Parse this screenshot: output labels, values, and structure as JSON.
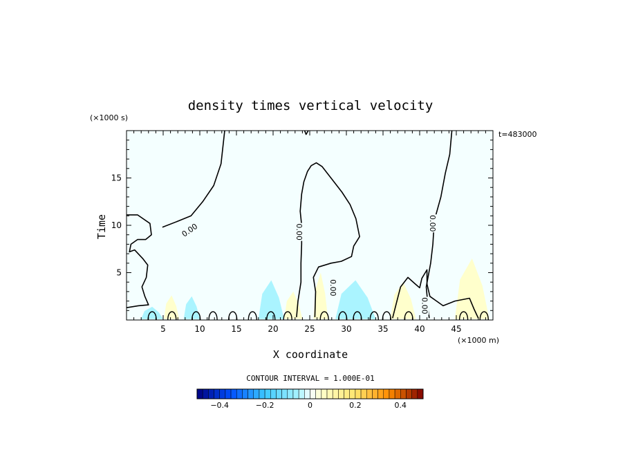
{
  "chart_data": {
    "type": "heatmap",
    "title": "density times vertical velocity",
    "xlabel": "X coordinate",
    "ylabel": "Time",
    "x_unit": "(×1000 m)",
    "y_unit": "(×1000 s)",
    "time_stamp": "t=483000",
    "xlim": [
      0,
      50
    ],
    "ylim": [
      0,
      20
    ],
    "x_ticks": [
      5,
      10,
      15,
      20,
      25,
      30,
      35,
      40,
      45
    ],
    "y_ticks": [
      5,
      10,
      15
    ],
    "contour_interval_text": "CONTOUR INTERVAL = 1.000E-01",
    "contour_level_label": "0.00",
    "colorbar": {
      "min": -0.5,
      "max": 0.5,
      "step": 0.025,
      "tick_values": [
        -0.4,
        -0.2,
        0,
        0.2,
        0.4
      ],
      "tick_labels": [
        "−0.4",
        "−0.2",
        "0",
        "0.2",
        "0.4"
      ],
      "colors": {
        "dark_negative": "#00007f",
        "mid_negative": "#1e90ff",
        "light_negative": "#aaf4ff",
        "near_zero": "#f4ffff",
        "light_positive": "#ffffcc",
        "mid_positive": "#ffa500",
        "dark_positive": "#7f0000"
      }
    },
    "field_patches": [
      {
        "sign": "positive",
        "x": [
          5.1,
          7.2
        ],
        "y": [
          0.1,
          2.6
        ],
        "value": 0.05
      },
      {
        "sign": "negative",
        "x": [
          2.0,
          5.0
        ],
        "y": [
          0.1,
          1.4
        ],
        "value": -0.05
      },
      {
        "sign": "negative",
        "x": [
          7.8,
          10.0
        ],
        "y": [
          0.1,
          2.5
        ],
        "value": -0.05
      },
      {
        "sign": "negative",
        "x": [
          18.0,
          21.5
        ],
        "y": [
          0.1,
          4.2
        ],
        "value": -0.05
      },
      {
        "sign": "positive",
        "x": [
          21.5,
          24.0
        ],
        "y": [
          0.1,
          3.0
        ],
        "value": 0.05
      },
      {
        "sign": "positive",
        "x": [
          25.5,
          27.5
        ],
        "y": [
          0.1,
          5.0
        ],
        "value": 0.05
      },
      {
        "sign": "negative",
        "x": [
          28.5,
          34.0
        ],
        "y": [
          0.1,
          4.2
        ],
        "value": -0.05
      },
      {
        "sign": "positive",
        "x": [
          36.0,
          39.5
        ],
        "y": [
          0.1,
          4.0
        ],
        "value": 0.05
      },
      {
        "sign": "positive",
        "x": [
          44.8,
          49.5
        ],
        "y": [
          0.1,
          6.5
        ],
        "value": 0.05
      }
    ],
    "zero_contours": [
      {
        "name": "left-region",
        "points": [
          [
            0,
            11.1
          ],
          [
            1.5,
            11.1
          ],
          [
            3.2,
            10.2
          ],
          [
            3.4,
            9.0
          ],
          [
            2.6,
            8.5
          ],
          [
            1.5,
            8.5
          ],
          [
            0.6,
            8.0
          ],
          [
            0.4,
            7.2
          ],
          [
            1.1,
            7.4
          ],
          [
            2.2,
            6.5
          ],
          [
            2.9,
            5.8
          ],
          [
            2.7,
            4.5
          ],
          [
            2.1,
            3.5
          ],
          [
            2.5,
            2.5
          ],
          [
            3.0,
            1.6
          ],
          [
            1.6,
            1.5
          ],
          [
            0,
            1.3
          ]
        ]
      },
      {
        "name": "left-upper-contour",
        "points": [
          [
            13.4,
            20
          ],
          [
            12.9,
            16.5
          ],
          [
            11.9,
            14.2
          ],
          [
            10.4,
            12.5
          ],
          [
            8.8,
            11.0
          ],
          [
            6.9,
            10.4
          ],
          [
            4.9,
            9.8
          ]
        ]
      },
      {
        "name": "central-dome",
        "points": [
          [
            23.2,
            0.3
          ],
          [
            23.4,
            2.0
          ],
          [
            23.8,
            4.0
          ],
          [
            23.8,
            6.0
          ],
          [
            23.9,
            8.0
          ],
          [
            23.9,
            10.0
          ],
          [
            23.7,
            11.5
          ],
          [
            23.9,
            13.3
          ],
          [
            24.2,
            14.6
          ],
          [
            24.7,
            15.7
          ],
          [
            25.2,
            16.3
          ],
          [
            25.9,
            16.6
          ],
          [
            26.7,
            16.2
          ],
          [
            28.0,
            14.9
          ],
          [
            29.4,
            13.5
          ],
          [
            30.5,
            12.2
          ],
          [
            31.3,
            10.7
          ],
          [
            31.8,
            8.8
          ],
          [
            31.0,
            7.8
          ],
          [
            30.7,
            6.7
          ],
          [
            29.3,
            6.2
          ],
          [
            27.9,
            6.0
          ],
          [
            26.2,
            5.6
          ],
          [
            25.5,
            4.5
          ],
          [
            25.8,
            3.0
          ],
          [
            25.7,
            0.3
          ]
        ]
      },
      {
        "name": "right-vertical",
        "points": [
          [
            44.4,
            20
          ],
          [
            44.1,
            17.5
          ],
          [
            43.5,
            15.5
          ],
          [
            42.9,
            13.0
          ],
          [
            42.0,
            10.5
          ],
          [
            41.8,
            8.0
          ],
          [
            41.5,
            6.0
          ],
          [
            40.9,
            3.5
          ],
          [
            41.2,
            1.0
          ],
          [
            41.3,
            0.2
          ]
        ]
      },
      {
        "name": "right-hump",
        "points": [
          [
            36.3,
            0.2
          ],
          [
            36.9,
            2.0
          ],
          [
            37.4,
            3.5
          ],
          [
            38.4,
            4.5
          ],
          [
            39.4,
            3.8
          ],
          [
            40.0,
            3.4
          ],
          [
            40.3,
            4.4
          ],
          [
            41.0,
            5.3
          ],
          [
            41.0,
            3.8
          ],
          [
            41.4,
            2.5
          ],
          [
            42.3,
            2.0
          ],
          [
            43.2,
            1.5
          ],
          [
            44.8,
            2.0
          ],
          [
            46.8,
            2.3
          ],
          [
            47.4,
            1.2
          ],
          [
            48.0,
            0.2
          ]
        ]
      },
      {
        "name": "top-dip",
        "points": [
          [
            24.3,
            20
          ],
          [
            24.5,
            19.6
          ],
          [
            24.8,
            20
          ]
        ]
      }
    ],
    "contour_labels": [
      {
        "text": "0.00",
        "x": 8.6,
        "y": 9.5,
        "angle": -35
      },
      {
        "text": "0.00",
        "x": 23.6,
        "y": 9.3,
        "angle": 90
      },
      {
        "text": "0.00",
        "x": 28.2,
        "y": 3.4,
        "angle": 90
      },
      {
        "text": "0.00",
        "x": 41.8,
        "y": 10.2,
        "angle": 90
      },
      {
        "text": "0.00",
        "x": 40.7,
        "y": 1.5,
        "angle": 90
      }
    ]
  }
}
